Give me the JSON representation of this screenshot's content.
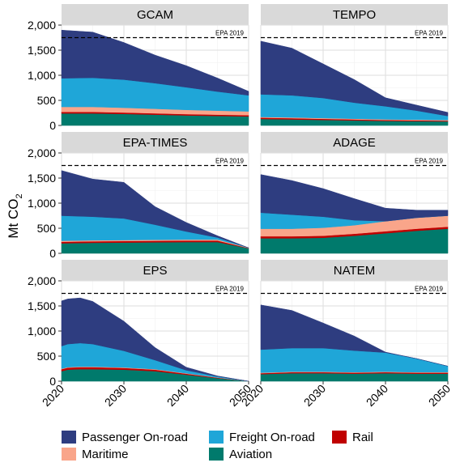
{
  "chart_data": {
    "type": "area",
    "stacked": true,
    "ylabel": "Mt CO",
    "ylabel_subscript": "2",
    "xlim": [
      2020,
      2050
    ],
    "ylim": [
      0,
      2000
    ],
    "x_ticks": [
      2020,
      2030,
      2040,
      2050
    ],
    "y_ticks": [
      0,
      500,
      1000,
      1500,
      2000
    ],
    "y_tick_labels": [
      "0",
      "500",
      "1,000",
      "1,500",
      "2,000"
    ],
    "grid": true,
    "legend_position": "bottom",
    "reference_line": {
      "label": "EPA 2019",
      "value": 1750,
      "style": "dashed"
    },
    "series_order_bottom_to_top": [
      "Aviation",
      "Rail",
      "Maritime",
      "Freight On-road",
      "Passenger On-road"
    ],
    "legend": [
      {
        "name": "Passenger On-road",
        "color": "#2e3d80"
      },
      {
        "name": "Freight On-road",
        "color": "#1fa6d8"
      },
      {
        "name": "Rail",
        "color": "#c00000"
      },
      {
        "name": "Maritime",
        "color": "#f9a58a"
      },
      {
        "name": "Aviation",
        "color": "#007a6c"
      }
    ],
    "panels": [
      {
        "title": "GCAM",
        "x": [
          2020,
          2025,
          2030,
          2035,
          2040,
          2045,
          2050
        ],
        "series": [
          {
            "name": "Aviation",
            "values": [
              240,
              240,
              230,
              215,
              200,
              190,
              180
            ]
          },
          {
            "name": "Rail",
            "values": [
              30,
              30,
              28,
              27,
              26,
              25,
              25
            ]
          },
          {
            "name": "Maritime",
            "values": [
              100,
              100,
              95,
              90,
              85,
              80,
              75
            ]
          },
          {
            "name": "Freight On-road",
            "values": [
              570,
              580,
              560,
              510,
              450,
              380,
              320
            ]
          },
          {
            "name": "Passenger On-road",
            "values": [
              960,
              910,
              740,
              560,
              430,
              270,
              80
            ]
          }
        ]
      },
      {
        "title": "TEMPO",
        "x": [
          2020,
          2025,
          2030,
          2035,
          2040,
          2045,
          2050
        ],
        "series": [
          {
            "name": "Aviation",
            "values": [
              130,
              120,
              110,
              100,
              90,
              85,
              80
            ]
          },
          {
            "name": "Rail",
            "values": [
              25,
              25,
              22,
              20,
              18,
              17,
              15
            ]
          },
          {
            "name": "Maritime",
            "values": [
              15,
              15,
              15,
              14,
              14,
              13,
              13
            ]
          },
          {
            "name": "Freight On-road",
            "values": [
              450,
              440,
              400,
              320,
              260,
              180,
              80
            ]
          },
          {
            "name": "Passenger On-road",
            "values": [
              1060,
              940,
              680,
              460,
              170,
              110,
              72
            ]
          }
        ]
      },
      {
        "title": "EPA-TIMES",
        "x": [
          2020,
          2025,
          2030,
          2035,
          2040,
          2045,
          2050
        ],
        "series": [
          {
            "name": "Aviation",
            "values": [
              200,
              210,
              215,
              220,
              225,
              225,
              100
            ]
          },
          {
            "name": "Rail",
            "values": [
              30,
              30,
              30,
              30,
              30,
              30,
              5
            ]
          },
          {
            "name": "Maritime",
            "values": [
              20,
              20,
              20,
              20,
              20,
              20,
              5
            ]
          },
          {
            "name": "Freight On-road",
            "values": [
              500,
              470,
              430,
              300,
              160,
              40,
              0
            ]
          },
          {
            "name": "Passenger On-road",
            "values": [
              900,
              750,
              720,
              360,
              180,
              35,
              0
            ]
          }
        ]
      },
      {
        "title": "ADAGE",
        "x": [
          2020,
          2025,
          2030,
          2035,
          2040,
          2045,
          2050
        ],
        "series": [
          {
            "name": "Aviation",
            "values": [
              300,
              300,
              310,
              350,
              400,
              450,
              490
            ]
          },
          {
            "name": "Rail",
            "values": [
              40,
              40,
              40,
              40,
              40,
              40,
              40
            ]
          },
          {
            "name": "Maritime",
            "values": [
              150,
              150,
              160,
              170,
              200,
              220,
              220
            ]
          },
          {
            "name": "Freight On-road",
            "values": [
              320,
              280,
              220,
              100,
              0,
              0,
              0
            ]
          },
          {
            "name": "Passenger On-road",
            "values": [
              760,
              680,
              560,
              430,
              260,
              150,
              110
            ]
          }
        ]
      },
      {
        "title": "EPS",
        "x": [
          2020,
          2021,
          2023,
          2025,
          2030,
          2035,
          2040,
          2045,
          2050
        ],
        "series": [
          {
            "name": "Aviation",
            "values": [
              200,
              230,
              240,
              240,
              230,
              200,
              130,
              60,
              0
            ]
          },
          {
            "name": "Rail",
            "values": [
              40,
              40,
              40,
              40,
              35,
              30,
              20,
              10,
              0
            ]
          },
          {
            "name": "Maritime",
            "values": [
              10,
              10,
              10,
              10,
              10,
              10,
              8,
              5,
              0
            ]
          },
          {
            "name": "Freight On-road",
            "values": [
              450,
              460,
              470,
              450,
              330,
              180,
              60,
              20,
              0
            ]
          },
          {
            "name": "Passenger On-road",
            "values": [
              900,
              900,
              900,
              850,
              590,
              250,
              60,
              10,
              0
            ]
          }
        ]
      },
      {
        "title": "NATEM",
        "x": [
          2020,
          2025,
          2030,
          2035,
          2040,
          2045,
          2050
        ],
        "series": [
          {
            "name": "Aviation",
            "values": [
              140,
              160,
              160,
              150,
              160,
              150,
              150
            ]
          },
          {
            "name": "Rail",
            "values": [
              20,
              20,
              20,
              20,
              20,
              20,
              20
            ]
          },
          {
            "name": "Maritime",
            "values": [
              10,
              10,
              10,
              10,
              10,
              10,
              10
            ]
          },
          {
            "name": "Freight On-road",
            "values": [
              460,
              470,
              470,
              430,
              380,
              270,
              120
            ]
          },
          {
            "name": "Passenger On-road",
            "values": [
              890,
              750,
              500,
              290,
              10,
              0,
              0
            ]
          }
        ]
      }
    ]
  }
}
